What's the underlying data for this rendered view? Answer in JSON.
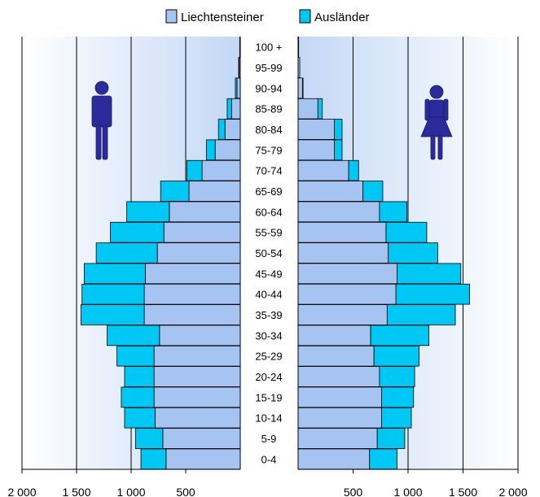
{
  "chart_data": {
    "type": "bar",
    "layout": "population-pyramid",
    "categories": [
      "0-4",
      "5-9",
      "10-14",
      "15-19",
      "20-24",
      "25-29",
      "30-34",
      "35-39",
      "40-44",
      "45-49",
      "50-54",
      "55-59",
      "60-64",
      "65-69",
      "70-74",
      "75-79",
      "80-84",
      "85-89",
      "90-94",
      "95-99",
      "100 +"
    ],
    "series": [
      {
        "name": "Liechtensteiner",
        "color": "#a6c4f2",
        "male": [
          680,
          710,
          780,
          790,
          790,
          790,
          740,
          880,
          880,
          870,
          760,
          700,
          650,
          470,
          350,
          230,
          140,
          80,
          30,
          10,
          5
        ],
        "female": [
          650,
          720,
          760,
          760,
          740,
          690,
          660,
          810,
          890,
          900,
          820,
          800,
          740,
          590,
          460,
          330,
          330,
          180,
          40,
          15,
          5
        ]
      },
      {
        "name": "Ausländer",
        "color": "#00c8f4",
        "male": [
          230,
          250,
          280,
          300,
          270,
          340,
          480,
          580,
          570,
          560,
          560,
          490,
          390,
          260,
          140,
          80,
          60,
          40,
          15,
          5,
          0
        ],
        "female": [
          250,
          250,
          270,
          290,
          320,
          410,
          530,
          620,
          670,
          580,
          450,
          370,
          250,
          180,
          90,
          70,
          70,
          40,
          5,
          0,
          0
        ]
      }
    ],
    "xlim": [
      0,
      2000
    ],
    "x_ticks_left": [
      "2 000",
      "1 500",
      "1 000",
      "500"
    ],
    "x_ticks_right": [
      "500",
      "1 000",
      "1 500",
      "2 000"
    ],
    "legend_position": "top-center",
    "grid": true
  },
  "icons": {
    "male": "male-person-icon",
    "female": "female-person-icon",
    "color": "#2b2b9c"
  }
}
